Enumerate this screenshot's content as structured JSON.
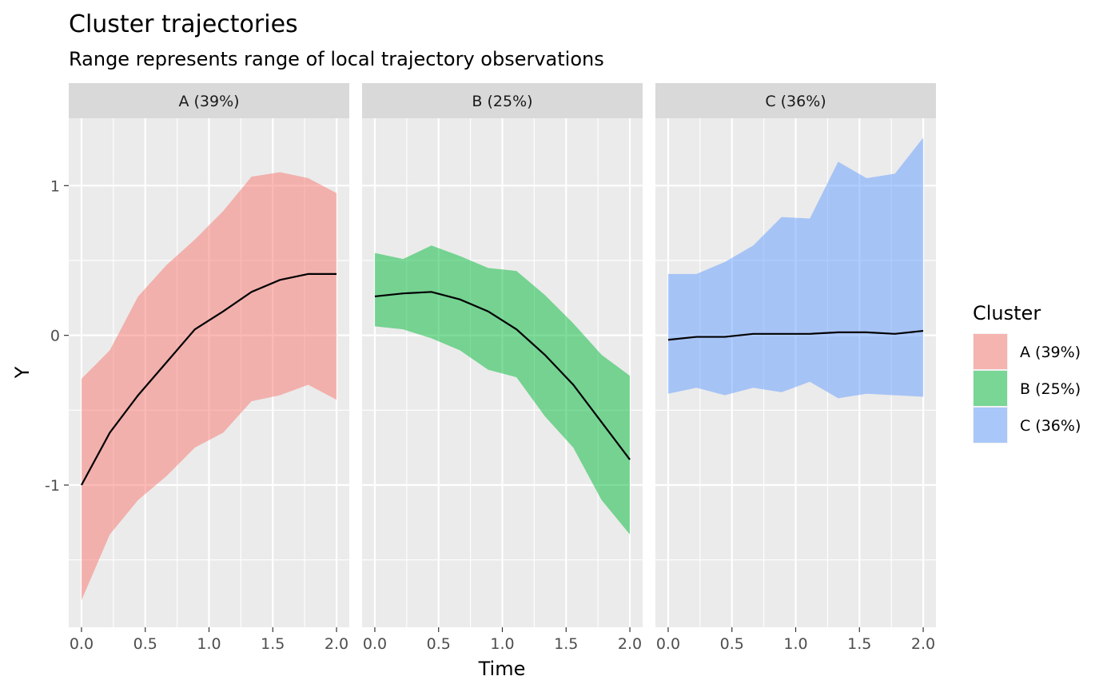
{
  "chart_data": {
    "type": "area",
    "title": "Cluster trajectories",
    "subtitle": "Range represents range of local trajectory observations",
    "xlabel": "Time",
    "ylabel": "Y",
    "xlim": [
      -0.1,
      2.1
    ],
    "ylim": [
      -1.95,
      1.45
    ],
    "x_ticks": [
      "0.0",
      "0.5",
      "1.0",
      "1.5",
      "2.0"
    ],
    "y_ticks": [
      "-1",
      "0",
      "1"
    ],
    "x": [
      0,
      0.222,
      0.444,
      0.667,
      0.889,
      1.111,
      1.333,
      1.556,
      1.778,
      2.0
    ],
    "legend": {
      "title": "Cluster",
      "position": "right"
    },
    "panel_background": "#EBEBEB",
    "strip_background": "#D9D9D9",
    "series": [
      {
        "name": "A (39%)",
        "color": "#F8766D",
        "mean": [
          -1.0,
          -0.65,
          -0.4,
          -0.18,
          0.04,
          0.16,
          0.29,
          0.37,
          0.41,
          0.41
        ],
        "lower": [
          -1.77,
          -1.33,
          -1.1,
          -0.94,
          -0.75,
          -0.65,
          -0.44,
          -0.4,
          -0.33,
          -0.43
        ],
        "upper": [
          -0.29,
          -0.1,
          0.26,
          0.47,
          0.64,
          0.83,
          1.06,
          1.09,
          1.05,
          0.95
        ]
      },
      {
        "name": "B (25%)",
        "color": "#00BA38",
        "mean": [
          0.26,
          0.28,
          0.29,
          0.24,
          0.16,
          0.04,
          -0.13,
          -0.33,
          -0.58,
          -0.83
        ],
        "lower": [
          0.06,
          0.04,
          -0.02,
          -0.1,
          -0.23,
          -0.28,
          -0.54,
          -0.75,
          -1.1,
          -1.33
        ],
        "upper": [
          0.55,
          0.51,
          0.6,
          0.53,
          0.45,
          0.43,
          0.27,
          0.08,
          -0.13,
          -0.27
        ]
      },
      {
        "name": "C (36%)",
        "color": "#619CFF",
        "mean": [
          -0.03,
          -0.01,
          -0.01,
          0.01,
          0.01,
          0.01,
          0.02,
          0.02,
          0.01,
          0.03
        ],
        "lower": [
          -0.39,
          -0.35,
          -0.4,
          -0.35,
          -0.38,
          -0.31,
          -0.42,
          -0.39,
          -0.4,
          -0.41
        ],
        "upper": [
          0.41,
          0.41,
          0.49,
          0.6,
          0.79,
          0.78,
          1.16,
          1.05,
          1.08,
          1.32
        ]
      }
    ]
  }
}
